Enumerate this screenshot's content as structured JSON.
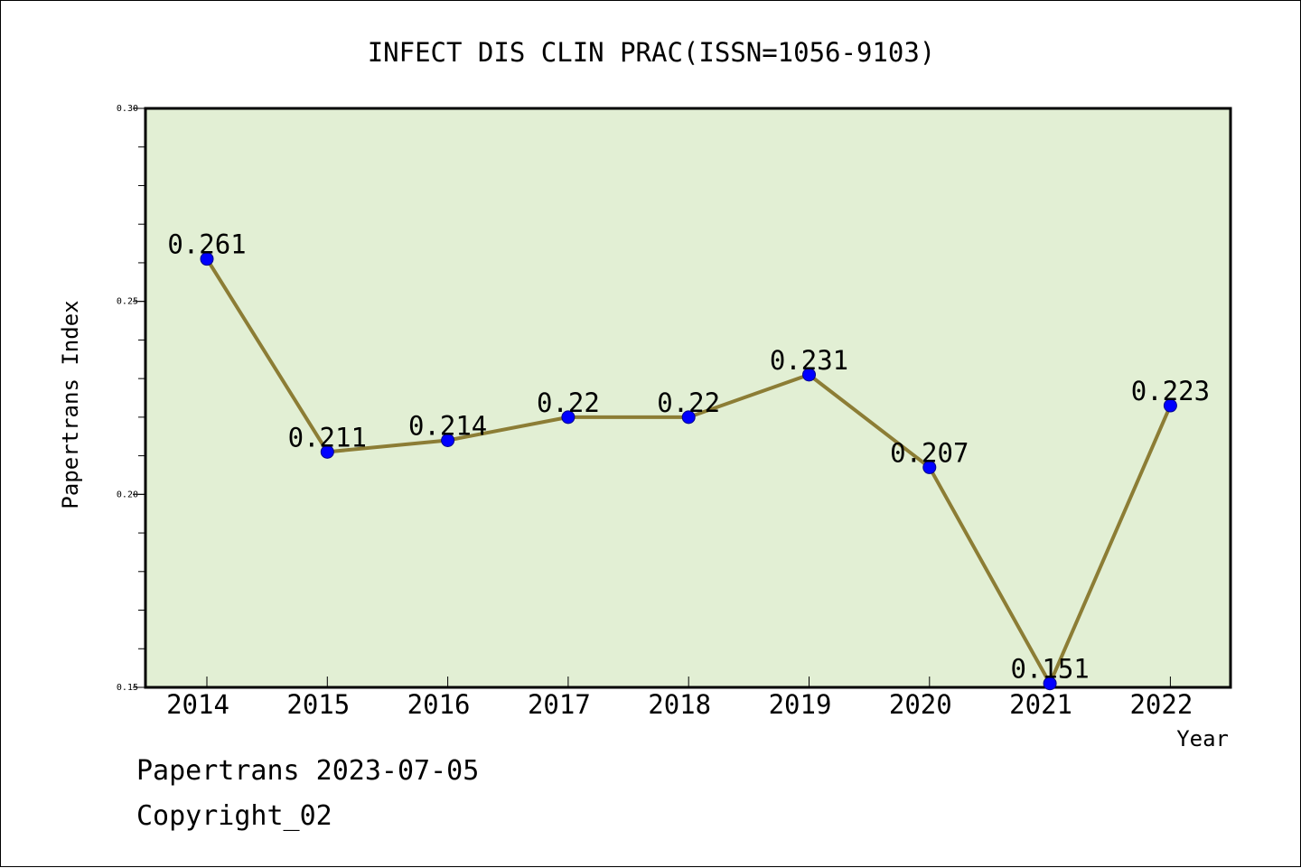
{
  "chart_data": {
    "type": "line",
    "title": "INFECT DIS CLIN PRAC(ISSN=1056-9103)",
    "xlabel": "Year",
    "ylabel": "Papertrans Index",
    "categories": [
      "2014",
      "2015",
      "2016",
      "2017",
      "2018",
      "2019",
      "2020",
      "2021",
      "2022"
    ],
    "values": [
      0.261,
      0.211,
      0.214,
      0.22,
      0.22,
      0.231,
      0.207,
      0.151,
      0.223
    ],
    "data_labels": [
      "0.261",
      "0.211",
      "0.214",
      "0.22",
      "0.22",
      "0.231",
      "0.207",
      "0.151",
      "0.223"
    ],
    "ylim": [
      0.15,
      0.3
    ],
    "yticks": [
      "0.15",
      "0.20",
      "0.25",
      "0.30"
    ],
    "grid": false,
    "colors": {
      "plot_background": "#e2efd4",
      "line": "#8c7d35",
      "marker": "#0000ff"
    }
  },
  "footer": {
    "line1": "Papertrans 2023-07-05",
    "line2": "Copyright_02"
  }
}
